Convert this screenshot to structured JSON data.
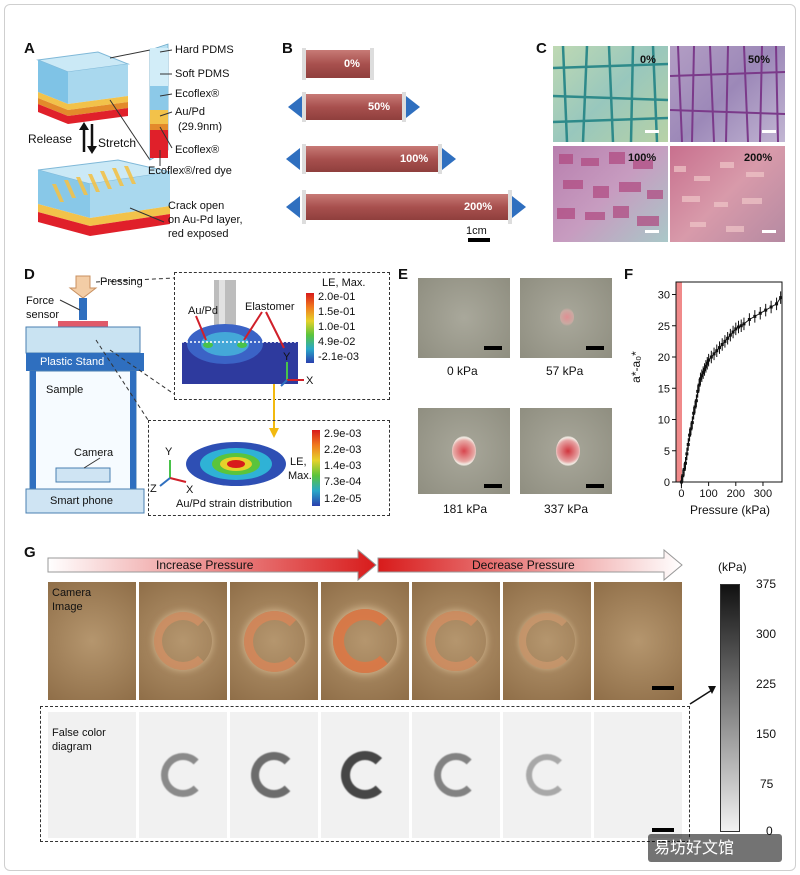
{
  "panel_labels": {
    "a": "A",
    "b": "B",
    "c": "C",
    "d": "D",
    "e": "E",
    "f": "F",
    "g": "G"
  },
  "panel_a": {
    "layers": [
      "Hard PDMS",
      "Soft PDMS",
      "Ecoflex®",
      "Au/Pd",
      "(29.9nm)",
      "Ecoflex®",
      "Ecoflex®/red dye"
    ],
    "release": "Release",
    "stretch": "Stretch",
    "crack_lines": [
      "Crack open",
      "on Au-Pd layer,",
      "red exposed"
    ],
    "colors": {
      "hard_pdms": "#a9d8ee",
      "soft_pdms": "#7fc3e6",
      "ecoflex": "#f2c24a",
      "aupd": "#e38a2b",
      "red_dye": "#e0202a"
    }
  },
  "panel_b": {
    "strains": [
      "0%",
      "50%",
      "100%",
      "200%"
    ],
    "scale_label": "1cm",
    "colors": {
      "strip": "#a8504e",
      "arrow": "#2f6fbf"
    }
  },
  "panel_c": {
    "labels": [
      "0%",
      "50%",
      "100%",
      "200%"
    ]
  },
  "panel_d": {
    "pressing": "Pressing",
    "force_sensor_lines": [
      "Force",
      "sensor"
    ],
    "plastic_stand": "Plastic Stand",
    "sample": "Sample",
    "camera": "Camera",
    "smart_phone": "Smart phone",
    "sim1": {
      "aupd": "Au/Pd",
      "elastomer": "Elastomer",
      "legend_title": "LE, Max.",
      "legend_values": [
        "2.0e-01",
        "1.5e-01",
        "1.0e-01",
        "4.9e-02",
        "-2.1e-03"
      ]
    },
    "sim2": {
      "legend_title_lines": [
        "LE,",
        "Max."
      ],
      "legend_values": [
        "2.9e-03",
        "2.2e-03",
        "1.4e-03",
        "7.3e-04",
        "1.2e-05"
      ],
      "caption": "Au/Pd strain distribution"
    },
    "axes": {
      "y": "Y",
      "x": "X",
      "z": "Z"
    }
  },
  "panel_e": {
    "labels": [
      "0 kPa",
      "57 kPa",
      "181 kPa",
      "337 kPa"
    ]
  },
  "chart_data": {
    "type": "scatter",
    "xlabel": "Pressure (kPa)",
    "ylabel": "a*-a₀*",
    "xlim": [
      -20,
      370
    ],
    "ylim": [
      0,
      32
    ],
    "xticks": [
      0,
      100,
      200,
      300
    ],
    "yticks": [
      0,
      5,
      10,
      15,
      20,
      25,
      30
    ],
    "x": [
      0,
      5,
      10,
      15,
      20,
      25,
      30,
      35,
      40,
      45,
      50,
      55,
      60,
      65,
      70,
      75,
      80,
      85,
      90,
      95,
      100,
      110,
      120,
      130,
      140,
      150,
      160,
      170,
      180,
      190,
      200,
      210,
      220,
      230,
      250,
      270,
      290,
      310,
      330,
      350,
      365
    ],
    "y": [
      0,
      1,
      2,
      3,
      4.5,
      6,
      7.5,
      8.5,
      9.5,
      11,
      12,
      13,
      14.5,
      15.5,
      16.5,
      17,
      17.5,
      18,
      18.5,
      19,
      19.5,
      20,
      20.5,
      21,
      21.5,
      22,
      22.5,
      23,
      23.5,
      24,
      24.5,
      24.8,
      25,
      25.3,
      26,
      26.5,
      27,
      27.5,
      28,
      28.5,
      29.5
    ],
    "error": 1.0,
    "grid": false
  },
  "panel_g": {
    "increase": "Increase Pressure",
    "decrease": "Decrease Pressure",
    "camera_lines": [
      "Camera",
      "Image"
    ],
    "falsecolor_lines": [
      "False color",
      "diagram"
    ],
    "intensity": [
      0,
      0.55,
      0.75,
      1.0,
      0.6,
      0.35,
      0
    ],
    "colorbar_unit": "(kPa)",
    "colorbar_ticks": [
      "375",
      "300",
      "225",
      "150",
      "75",
      "0"
    ]
  },
  "watermark": "易坊好文馆"
}
